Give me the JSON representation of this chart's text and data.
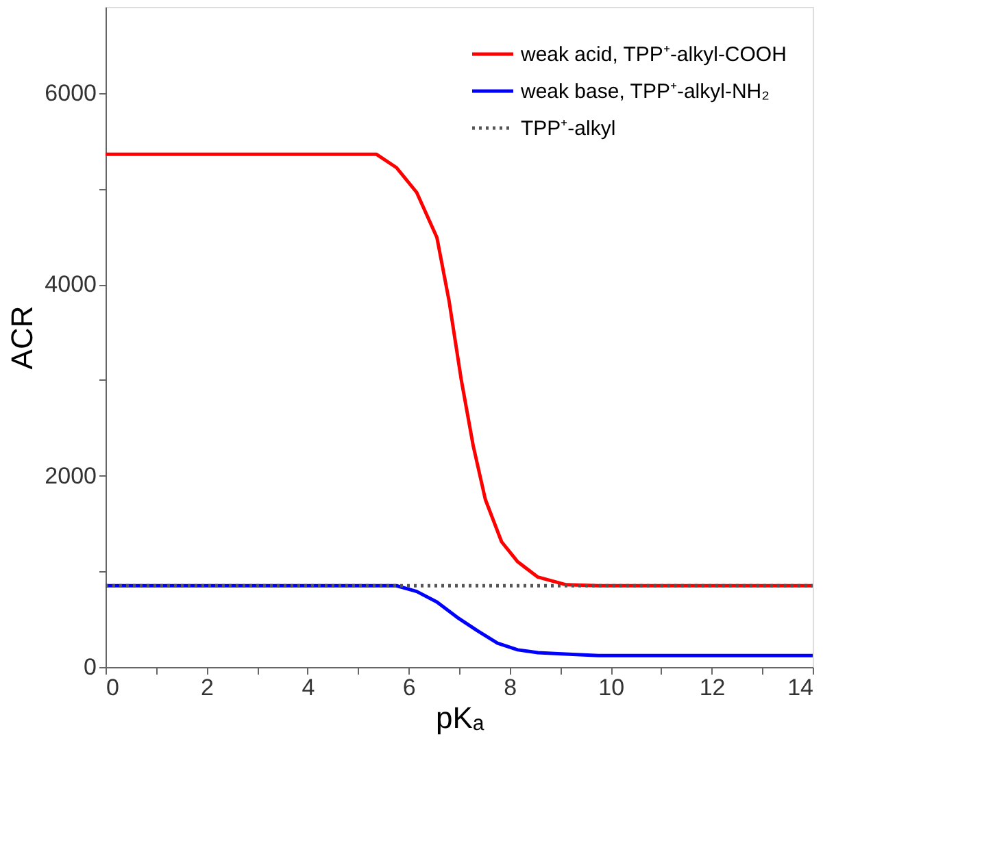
{
  "chart_data": {
    "type": "line",
    "xlabel": "pKₐ",
    "ylabel": "ACR",
    "xlim": [
      0,
      14
    ],
    "ylim": [
      0,
      6900
    ],
    "xticks": [
      0,
      {
        "value": 1,
        "label": null
      },
      2,
      {
        "value": 3,
        "label": null
      },
      4,
      {
        "value": 5,
        "label": null
      },
      6,
      {
        "value": 7,
        "label": null
      },
      8,
      {
        "value": 9,
        "label": null
      },
      10,
      {
        "value": 11,
        "label": null
      },
      12,
      {
        "value": 13,
        "label": null
      },
      14
    ],
    "yticks": [
      0,
      {
        "value": 1000,
        "label": null
      },
      2000,
      {
        "value": 3000,
        "label": null
      },
      4000,
      {
        "value": 5000,
        "label": null
      },
      6000
    ],
    "grid": false,
    "legend": "top right",
    "series": [
      {
        "name": "weak acid, TPP⁺-alkyl-COOH",
        "color": "#ff0000",
        "line_style": "solid",
        "x": [
          0,
          5.36,
          5.76,
          6.16,
          6.56,
          6.8,
          7.04,
          7.28,
          7.52,
          7.84,
          8.16,
          8.56,
          9.12,
          9.76,
          14
        ],
        "values": [
          5360,
          5360,
          5220,
          4960,
          4490,
          3830,
          3010,
          2310,
          1750,
          1310,
          1100,
          940,
          860,
          850,
          850
        ]
      },
      {
        "name": "weak base, TPP⁺-alkyl-NH₂",
        "color": "#0000ff",
        "line_style": "solid",
        "x": [
          0,
          5.76,
          6.16,
          6.56,
          6.96,
          7.36,
          7.76,
          8.16,
          8.56,
          8.96,
          9.76,
          14
        ],
        "values": [
          850,
          850,
          790,
          680,
          520,
          380,
          250,
          180,
          150,
          140,
          120,
          120
        ]
      },
      {
        "name": "TPP⁺-alkyl",
        "color": "#555555",
        "line_style": "dotted",
        "x": [
          0,
          14
        ],
        "values": [
          850,
          850
        ]
      }
    ]
  }
}
